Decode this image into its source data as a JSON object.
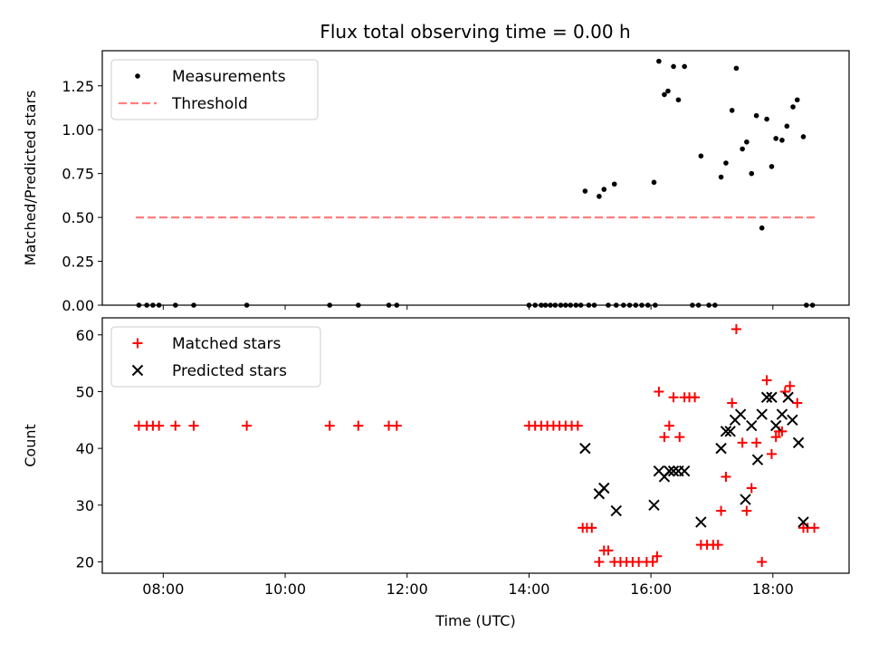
{
  "title": "Flux total observing time = 0.00 h",
  "chart_data": [
    {
      "type": "scatter",
      "ylabel": "Matched/Predicted stars",
      "xlabel": "",
      "xlim": [
        7.0,
        19.25
      ],
      "ylim": [
        0,
        1.45
      ],
      "yticks": [
        0,
        0.25,
        0.5,
        0.75,
        1.0,
        1.25
      ],
      "ytick_labels": [
        "0.00",
        "0.25",
        "0.50",
        "0.75",
        "1.00",
        "1.25"
      ],
      "legend": "top-left",
      "series": [
        {
          "name": "Measurements",
          "marker": "dot",
          "color": "#000000",
          "points": [
            [
              7.6,
              0
            ],
            [
              7.73,
              0
            ],
            [
              7.83,
              0
            ],
            [
              7.93,
              0
            ],
            [
              8.2,
              0
            ],
            [
              8.5,
              0
            ],
            [
              9.37,
              0
            ],
            [
              10.73,
              0
            ],
            [
              11.2,
              0
            ],
            [
              11.7,
              0
            ],
            [
              11.83,
              0
            ],
            [
              14.0,
              0
            ],
            [
              14.1,
              0
            ],
            [
              14.2,
              0
            ],
            [
              14.27,
              0
            ],
            [
              14.35,
              0
            ],
            [
              14.43,
              0
            ],
            [
              14.52,
              0
            ],
            [
              14.6,
              0
            ],
            [
              14.68,
              0
            ],
            [
              14.77,
              0
            ],
            [
              14.85,
              0
            ],
            [
              14.98,
              0
            ],
            [
              15.07,
              0
            ],
            [
              15.3,
              0
            ],
            [
              15.43,
              0
            ],
            [
              15.55,
              0
            ],
            [
              15.65,
              0
            ],
            [
              15.75,
              0
            ],
            [
              15.85,
              0
            ],
            [
              15.95,
              0
            ],
            [
              16.07,
              0
            ],
            [
              16.68,
              0
            ],
            [
              16.78,
              0
            ],
            [
              16.95,
              0
            ],
            [
              17.05,
              0
            ],
            [
              18.55,
              0
            ],
            [
              18.65,
              0
            ],
            [
              14.92,
              0.65
            ],
            [
              15.15,
              0.62
            ],
            [
              15.23,
              0.66
            ],
            [
              15.4,
              0.69
            ],
            [
              16.05,
              0.7
            ],
            [
              16.13,
              1.39
            ],
            [
              16.22,
              1.2
            ],
            [
              16.28,
              1.22
            ],
            [
              16.37,
              1.36
            ],
            [
              16.45,
              1.17
            ],
            [
              16.55,
              1.36
            ],
            [
              16.82,
              0.85
            ],
            [
              17.15,
              0.73
            ],
            [
              17.23,
              0.81
            ],
            [
              17.33,
              1.11
            ],
            [
              17.4,
              1.35
            ],
            [
              17.5,
              0.89
            ],
            [
              17.57,
              0.93
            ],
            [
              17.65,
              0.75
            ],
            [
              17.73,
              1.08
            ],
            [
              17.82,
              0.44
            ],
            [
              17.9,
              1.06
            ],
            [
              17.98,
              0.79
            ],
            [
              18.05,
              0.95
            ],
            [
              18.15,
              0.94
            ],
            [
              18.23,
              1.02
            ],
            [
              18.33,
              1.13
            ],
            [
              18.4,
              1.17
            ],
            [
              18.5,
              0.96
            ]
          ]
        },
        {
          "name": "Threshold",
          "marker": "dashed-line",
          "color": "#ff7f7f",
          "points": [
            [
              7.55,
              0.5
            ],
            [
              18.7,
              0.5
            ]
          ]
        }
      ]
    },
    {
      "type": "scatter",
      "ylabel": "Count",
      "xlabel": "Time (UTC)",
      "xlim": [
        7.0,
        19.25
      ],
      "ylim": [
        18,
        63
      ],
      "yticks": [
        20,
        30,
        40,
        50,
        60
      ],
      "ytick_labels": [
        "20",
        "30",
        "40",
        "50",
        "60"
      ],
      "xticks": [
        8,
        10,
        12,
        14,
        16,
        18
      ],
      "xtick_labels": [
        "08:00",
        "10:00",
        "12:00",
        "14:00",
        "16:00",
        "18:00"
      ],
      "legend": "top-left",
      "series": [
        {
          "name": "Matched stars",
          "marker": "plus",
          "color": "#ff0000",
          "points": [
            [
              7.6,
              44
            ],
            [
              7.73,
              44
            ],
            [
              7.83,
              44
            ],
            [
              7.93,
              44
            ],
            [
              8.2,
              44
            ],
            [
              8.5,
              44
            ],
            [
              9.37,
              44
            ],
            [
              10.73,
              44
            ],
            [
              11.2,
              44
            ],
            [
              11.7,
              44
            ],
            [
              11.83,
              44
            ],
            [
              14.0,
              44
            ],
            [
              14.1,
              44
            ],
            [
              14.2,
              44
            ],
            [
              14.3,
              44
            ],
            [
              14.4,
              44
            ],
            [
              14.5,
              44
            ],
            [
              14.6,
              44
            ],
            [
              14.7,
              44
            ],
            [
              14.8,
              44
            ],
            [
              14.88,
              26
            ],
            [
              14.95,
              26
            ],
            [
              15.03,
              26
            ],
            [
              15.15,
              20
            ],
            [
              15.23,
              22
            ],
            [
              15.3,
              22
            ],
            [
              15.4,
              20
            ],
            [
              15.5,
              20
            ],
            [
              15.6,
              20
            ],
            [
              15.7,
              20
            ],
            [
              15.8,
              20
            ],
            [
              15.93,
              20
            ],
            [
              16.03,
              20
            ],
            [
              16.1,
              21
            ],
            [
              16.13,
              50
            ],
            [
              16.22,
              42
            ],
            [
              16.3,
              44
            ],
            [
              16.37,
              49
            ],
            [
              16.47,
              42
            ],
            [
              16.55,
              49
            ],
            [
              16.63,
              49
            ],
            [
              16.72,
              49
            ],
            [
              16.82,
              23
            ],
            [
              16.92,
              23
            ],
            [
              17.02,
              23
            ],
            [
              17.1,
              23
            ],
            [
              17.15,
              29
            ],
            [
              17.23,
              35
            ],
            [
              17.33,
              48
            ],
            [
              17.4,
              61
            ],
            [
              17.5,
              41
            ],
            [
              17.57,
              29
            ],
            [
              17.65,
              33
            ],
            [
              17.73,
              41
            ],
            [
              17.82,
              20
            ],
            [
              17.9,
              52
            ],
            [
              17.98,
              39
            ],
            [
              18.05,
              42
            ],
            [
              18.1,
              43
            ],
            [
              18.15,
              43
            ],
            [
              18.2,
              50
            ],
            [
              18.28,
              51
            ],
            [
              18.4,
              48
            ],
            [
              18.5,
              26
            ],
            [
              18.57,
              26
            ],
            [
              18.68,
              26
            ]
          ]
        },
        {
          "name": "Predicted stars",
          "marker": "x",
          "color": "#000000",
          "points": [
            [
              14.92,
              40
            ],
            [
              15.15,
              32
            ],
            [
              15.23,
              33
            ],
            [
              15.43,
              29
            ],
            [
              16.05,
              30
            ],
            [
              16.13,
              36
            ],
            [
              16.22,
              35
            ],
            [
              16.3,
              36
            ],
            [
              16.37,
              36
            ],
            [
              16.45,
              36
            ],
            [
              16.55,
              36
            ],
            [
              16.82,
              27
            ],
            [
              17.15,
              40
            ],
            [
              17.23,
              43
            ],
            [
              17.3,
              43
            ],
            [
              17.38,
              45
            ],
            [
              17.47,
              46
            ],
            [
              17.55,
              31
            ],
            [
              17.65,
              44
            ],
            [
              17.75,
              38
            ],
            [
              17.82,
              46
            ],
            [
              17.9,
              49
            ],
            [
              17.98,
              49
            ],
            [
              18.05,
              44
            ],
            [
              18.15,
              46
            ],
            [
              18.25,
              49
            ],
            [
              18.32,
              45
            ],
            [
              18.42,
              41
            ],
            [
              18.5,
              27
            ]
          ]
        }
      ]
    }
  ]
}
